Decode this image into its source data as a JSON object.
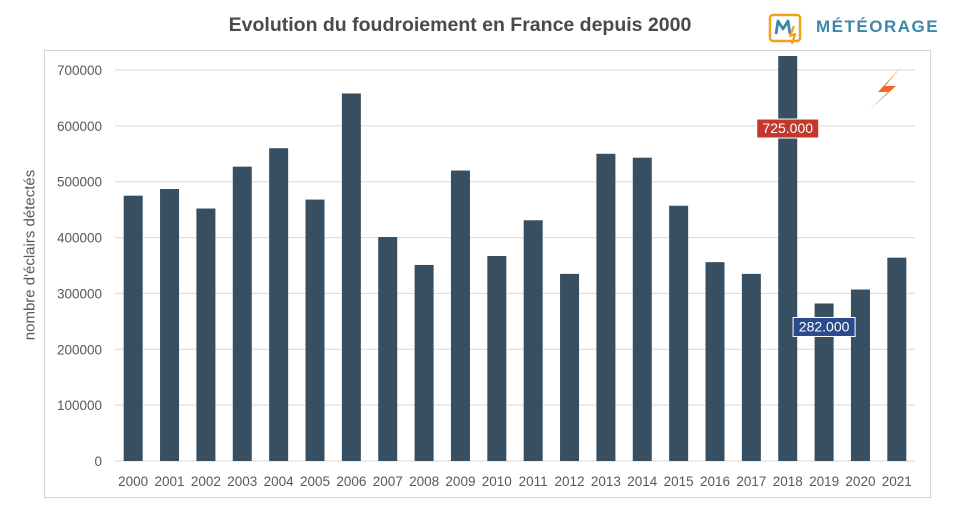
{
  "header": {
    "title": "Evolution du foudroiement en France depuis 2000",
    "brand": "MÉTÉORAGE"
  },
  "colors": {
    "bar": "#374f60",
    "grid": "#d9d9d9",
    "axis_text": "#595959",
    "label_max_bg": "#c0392b",
    "label_min_bg": "#2a4b8c",
    "logo_accent": "#f0a21a",
    "logo_blue": "#3b88a9",
    "bolt": "#f26522"
  },
  "chart_data": {
    "type": "bar",
    "title": "Evolution du foudroiement en France depuis 2000",
    "xlabel": "",
    "ylabel": "nombre d'éclairs détectés",
    "ylim": [
      0,
      700000
    ],
    "yticks": [
      0,
      100000,
      200000,
      300000,
      400000,
      500000,
      600000,
      700000
    ],
    "grid": true,
    "categories": [
      "2000",
      "2001",
      "2002",
      "2003",
      "2004",
      "2005",
      "2006",
      "2007",
      "2008",
      "2009",
      "2010",
      "2011",
      "2012",
      "2013",
      "2014",
      "2015",
      "2016",
      "2017",
      "2018",
      "2019",
      "2020",
      "2021"
    ],
    "values": [
      475000,
      487000,
      452000,
      527000,
      560000,
      468000,
      658000,
      401000,
      351000,
      520000,
      367000,
      431000,
      335000,
      550000,
      543000,
      457000,
      356000,
      335000,
      725000,
      282000,
      307000,
      364000
    ],
    "annotations": [
      {
        "category": "2018",
        "text": "725.000",
        "style": "max"
      },
      {
        "category": "2019",
        "text": "282.000",
        "style": "min"
      }
    ]
  }
}
